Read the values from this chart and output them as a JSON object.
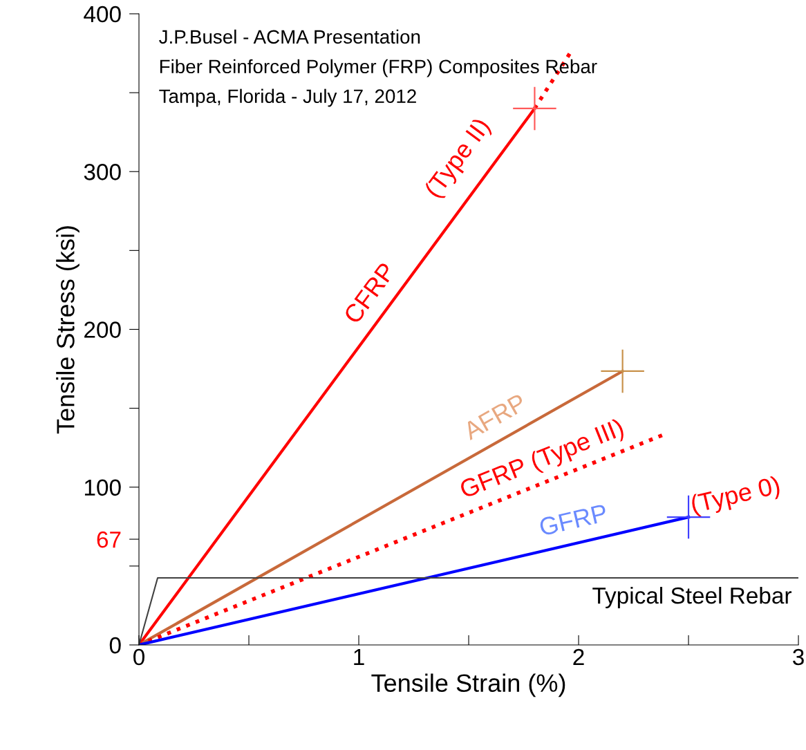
{
  "chart_data": {
    "type": "line",
    "xlabel": "Tensile Strain (%)",
    "ylabel": "Tensile Stress (ksi)",
    "xlim": [
      0,
      3
    ],
    "xticks": [
      0,
      {
        "value": 0.5,
        "label": null
      },
      1,
      {
        "value": 1.5,
        "label": null
      },
      2,
      {
        "value": 2.5,
        "label": null
      },
      3
    ],
    "ylim": [
      0,
      400
    ],
    "yticks": [
      0,
      {
        "value": 50,
        "label": null
      },
      {
        "value": 67,
        "label": "67"
      },
      100,
      {
        "value": 150,
        "label": null
      },
      200,
      {
        "value": 250,
        "label": null
      },
      300,
      {
        "value": 350,
        "label": null
      },
      400
    ],
    "grid": false,
    "series": [
      {
        "name": "CFRP",
        "color": "#ff0000",
        "x": [
          0,
          1.8
        ],
        "values": [
          0,
          340
        ],
        "line_style": "solid"
      },
      {
        "color": "#ff0000",
        "x": [
          1.8,
          1.97
        ],
        "values": [
          340,
          377
        ],
        "line_style": "dotted"
      },
      {
        "name": "AFRP",
        "color": "#c8693a",
        "x": [
          0,
          2.2
        ],
        "values": [
          0,
          173.5
        ],
        "line_style": "solid"
      },
      {
        "name": "GFRP (Type III)",
        "color": "#ff0000",
        "x": [
          0,
          2.4
        ],
        "values": [
          0,
          134
        ],
        "line_style": "dotted"
      },
      {
        "name": "GFRP",
        "color": "#0000ff",
        "x": [
          0,
          2.5
        ],
        "values": [
          0,
          81
        ],
        "line_style": "solid"
      },
      {
        "color": "#404040",
        "x": [
          0,
          0.085,
          3
        ],
        "values": [
          0,
          42.5,
          42.5
        ],
        "line_style": "solid"
      },
      {
        "type": "scatter",
        "marker": "cross",
        "x": [
          1.8,
          2.2,
          2.5
        ],
        "values": [
          340,
          173.5,
          81
        ],
        "colors": [
          "#ff5a5a",
          "#c8914a",
          "#4040ff"
        ]
      }
    ],
    "annotations": [
      "J.P.Busel - ACMA Presentation",
      "Fiber Reinforced Polymer (FRP) Composites Rebar",
      "Tampa, Florida - July 17, 2012",
      "(Type II)",
      "(Type 0)",
      "Typical Steel Rebar"
    ]
  }
}
